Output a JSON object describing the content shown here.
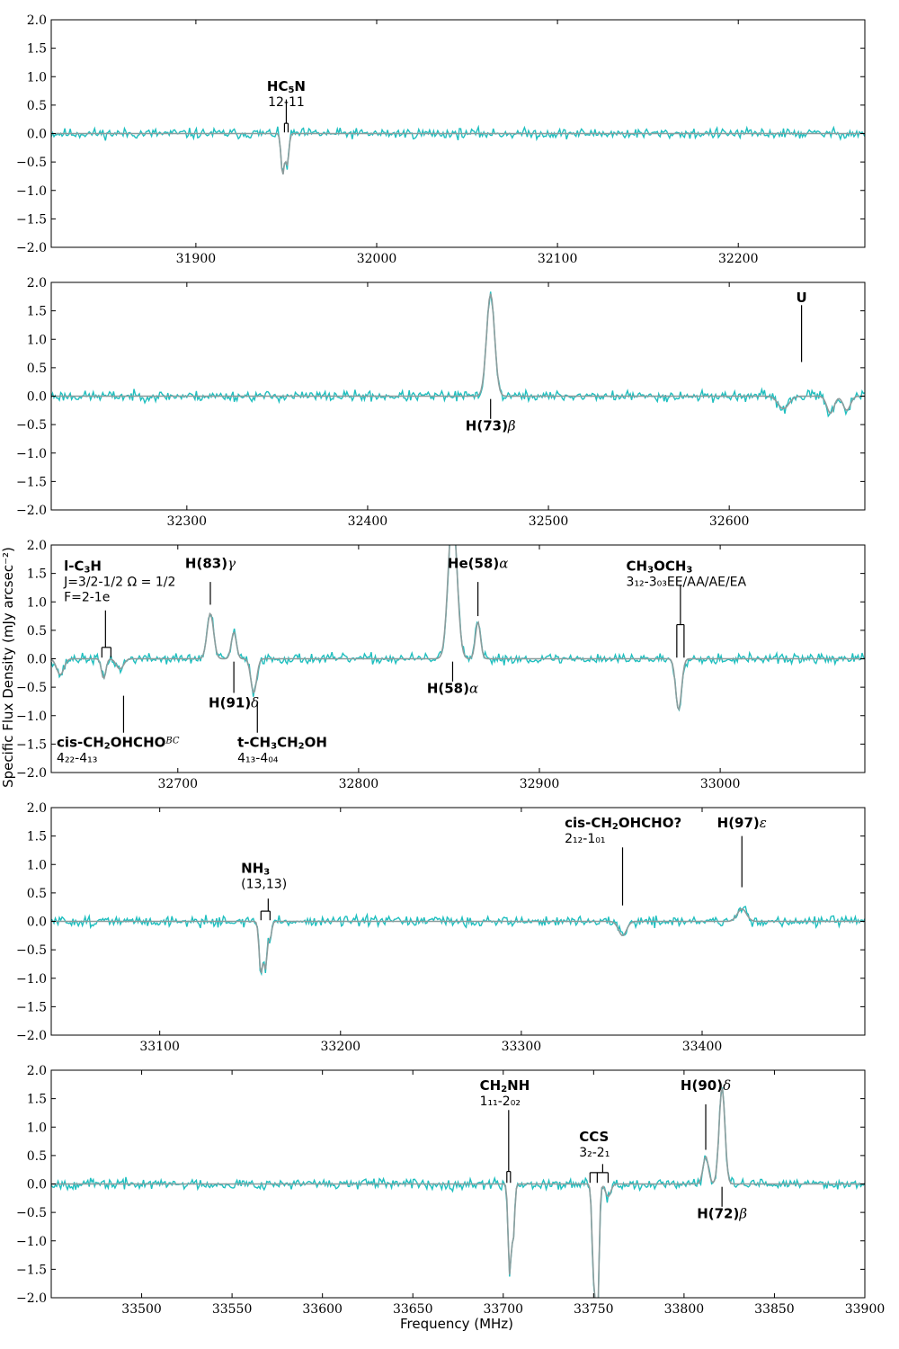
{
  "figure": {
    "ylabel": "Specific Flux Density (mJy arcsec⁻²)",
    "xlabel": "Frequency (MHz)"
  },
  "colors": {
    "observed": "#1fbfbf",
    "model": "#8c9c9c",
    "axes": "#000000"
  },
  "chart_data": [
    {
      "type": "line",
      "xlim": [
        31820,
        32270
      ],
      "ylim": [
        -2.0,
        2.0
      ],
      "xticks": [
        31900,
        32000,
        32100,
        32200
      ],
      "yticks": [
        -2.0,
        -1.5,
        -1.0,
        -0.5,
        0.0,
        0.5,
        1.0,
        1.5,
        2.0
      ],
      "noise_seed": 11,
      "lines": [
        {
          "center": 31948,
          "amp": -0.72,
          "width": 0.9
        },
        {
          "center": 31950.5,
          "amp": -0.55,
          "width": 0.9
        }
      ],
      "labels": [
        {
          "name": "HC",
          "sub": "5",
          "post": "N",
          "trans": "12-11",
          "trans_sub": [],
          "x": 31950,
          "side": "top",
          "bracket": [
            31949,
            31951
          ],
          "text_y": 0.75,
          "tick_to": 0.18
        }
      ]
    },
    {
      "type": "line",
      "xlim": [
        32225,
        32675
      ],
      "ylim": [
        -2.0,
        2.0
      ],
      "xticks": [
        32300,
        32400,
        32500,
        32600
      ],
      "yticks": [
        -2.0,
        -1.5,
        -1.0,
        -0.5,
        0.0,
        0.5,
        1.0,
        1.5,
        2.0
      ],
      "noise_seed": 23,
      "lines": [
        {
          "center": 32468,
          "amp": 1.8,
          "width": 2.2
        },
        {
          "center": 32630,
          "amp": -0.22,
          "width": 3
        },
        {
          "center": 32656,
          "amp": -0.3,
          "width": 2
        },
        {
          "center": 32665,
          "amp": -0.25,
          "width": 2
        }
      ],
      "labels": [
        {
          "name": "U",
          "trans": "",
          "x": 32640,
          "side": "top",
          "text_y": 1.65,
          "tick_from": 1.6,
          "tick_to": 0.6
        },
        {
          "name": "H(73)",
          "greek": "β",
          "trans": "",
          "x": 32468,
          "side": "bottom",
          "text_y": -0.6,
          "tick_from": -0.05,
          "tick_to": -0.4
        }
      ]
    },
    {
      "type": "line",
      "xlim": [
        32630,
        33080
      ],
      "ylim": [
        -2.0,
        2.0
      ],
      "xticks": [
        32700,
        32800,
        32900,
        33000
      ],
      "yticks": [
        -2.0,
        -1.5,
        -1.0,
        -0.5,
        0.0,
        0.5,
        1.0,
        1.5,
        2.0
      ],
      "noise_seed": 37,
      "lines": [
        {
          "center": 32635,
          "amp": -0.28,
          "width": 2
        },
        {
          "center": 32659,
          "amp": -0.35,
          "width": 1.2
        },
        {
          "center": 32668,
          "amp": -0.18,
          "width": 2
        },
        {
          "center": 32718,
          "amp": 0.8,
          "width": 1.8
        },
        {
          "center": 32731,
          "amp": 0.47,
          "width": 1.4
        },
        {
          "center": 32742,
          "amp": -0.6,
          "width": 1.6
        },
        {
          "center": 32852,
          "amp": 2.6,
          "width": 2.4
        },
        {
          "center": 32866,
          "amp": 0.65,
          "width": 1.4
        },
        {
          "center": 32977,
          "amp": -0.9,
          "width": 1.6
        }
      ],
      "labels": [
        {
          "name": "l-C",
          "sub": "3",
          "post": "H",
          "trans": "J=3/2-1/2 Ω = 1/2",
          "trans2": "F=2-1e",
          "trans_sub": [],
          "x": 32660,
          "side": "top",
          "bracket": [
            32658,
            32663
          ],
          "text_y": 1.55,
          "tick_from": 0.85,
          "tick_to": 0.2,
          "text_x": 32637
        },
        {
          "name": "H(83)",
          "greek": "γ",
          "trans": "",
          "x": 32718,
          "side": "top",
          "text_y": 1.6,
          "tick_from": 1.35,
          "tick_to": 0.95
        },
        {
          "name": "He(58)",
          "greek": "α",
          "trans": "",
          "x": 32866,
          "side": "top",
          "text_y": 1.6,
          "tick_from": 1.35,
          "tick_to": 0.75
        },
        {
          "name": "CH",
          "sub": "3",
          "post": "OCH",
          "sub2": "3",
          "trans": "3₁₂-3₀₃EE/AA/AE/EA",
          "trans_sub": [],
          "x": 32978,
          "side": "top",
          "bracket": [
            32976,
            32980
          ],
          "text_y": 1.55,
          "tick_from": 1.3,
          "tick_to": 0.6,
          "text_x": 32948
        },
        {
          "name": "H(91)",
          "greek": "δ",
          "trans": "",
          "x": 32731,
          "side": "bottom",
          "text_y": -0.85,
          "tick_from": -0.05,
          "tick_to": -0.6
        },
        {
          "name": "H(58)",
          "greek": "α",
          "trans": "",
          "x": 32852,
          "side": "bottom",
          "text_y": -0.6,
          "tick_from": -0.05,
          "tick_to": -0.4
        },
        {
          "name": "cis-CH",
          "sub": "2",
          "post": "OHCHO",
          "sup": "BC",
          "trans": "4₂₂-4₁₃",
          "trans_sub": [],
          "x": 32670,
          "side": "bottom",
          "text_y": -1.55,
          "tick_from": -0.65,
          "tick_to": -1.3,
          "text_x": 32633
        },
        {
          "name": "t-CH",
          "sub": "3",
          "post": "CH",
          "sub2": "2",
          "post2": "OH",
          "trans": "4₁₃-4₀₄",
          "trans_sub": [],
          "x": 32744,
          "side": "bottom",
          "text_y": -1.55,
          "tick_from": -0.75,
          "tick_to": -1.3,
          "text_x": 32733
        }
      ]
    },
    {
      "type": "line",
      "xlim": [
        33040,
        33490
      ],
      "ylim": [
        -2.0,
        2.0
      ],
      "xticks": [
        33100,
        33200,
        33300,
        33400
      ],
      "yticks": [
        -2.0,
        -1.5,
        -1.0,
        -0.5,
        0.0,
        0.5,
        1.0,
        1.5,
        2.0
      ],
      "noise_seed": 51,
      "lines": [
        {
          "center": 33156,
          "amp": -0.9,
          "width": 1.0
        },
        {
          "center": 33158.5,
          "amp": -0.8,
          "width": 0.9
        },
        {
          "center": 33161,
          "amp": -0.3,
          "width": 0.9
        },
        {
          "center": 33356,
          "amp": -0.25,
          "width": 2.2
        },
        {
          "center": 33422,
          "amp": 0.22,
          "width": 2.5
        }
      ],
      "labels": [
        {
          "name": "NH",
          "sub": "3",
          "trans": "(13,13)",
          "trans_sub": [],
          "x": 33160,
          "side": "top",
          "bracket": [
            33156,
            33161
          ],
          "text_y": 0.85,
          "tick_from": 0.4,
          "tick_to": 0.18,
          "text_x": 33145
        },
        {
          "name": "cis-CH",
          "sub": "2",
          "post": "OHCHO?",
          "trans": "2₁₂-1₀₁",
          "trans_sub": [],
          "x": 33356,
          "side": "top",
          "bracket": [],
          "text_y": 1.65,
          "tick_from": 1.3,
          "tick_to": 0.28,
          "text_x": 33324
        },
        {
          "name": "H(97)",
          "greek": "ε",
          "trans": "",
          "x": 33422,
          "side": "top",
          "text_y": 1.65,
          "tick_from": 1.5,
          "tick_to": 0.6
        }
      ]
    },
    {
      "type": "line",
      "xlim": [
        33450,
        33900
      ],
      "ylim": [
        -2.0,
        2.0
      ],
      "xticks": [
        33500,
        33550,
        33600,
        33650,
        33700,
        33750,
        33800,
        33850,
        33900
      ],
      "yticks": [
        -2.0,
        -1.5,
        -1.0,
        -0.5,
        0.0,
        0.5,
        1.0,
        1.5,
        2.0
      ],
      "noise_seed": 67,
      "lines": [
        {
          "center": 33703.5,
          "amp": -1.55,
          "width": 0.8
        },
        {
          "center": 33705.5,
          "amp": -0.95,
          "width": 0.8
        },
        {
          "center": 33750,
          "amp": -1.5,
          "width": 0.9
        },
        {
          "center": 33752,
          "amp": -2.5,
          "width": 0.9
        },
        {
          "center": 33758,
          "amp": -0.22,
          "width": 1.5
        },
        {
          "center": 33812,
          "amp": 0.48,
          "width": 1.5
        },
        {
          "center": 33821,
          "amp": 1.7,
          "width": 1.6
        }
      ],
      "labels": [
        {
          "name": "CH",
          "sub": "2",
          "post": "NH",
          "trans": "1₁₁-2₀₂",
          "trans_sub": [],
          "x": 33703,
          "side": "top",
          "bracket": [
            33702,
            33704
          ],
          "text_y": 1.65,
          "tick_from": 1.3,
          "tick_to": 0.22,
          "text_x": 33687
        },
        {
          "name": "CCS",
          "trans": "3₂-2₁",
          "trans_sub": [],
          "x": 33755,
          "side": "top",
          "bracket": [
            33748,
            33752,
            33758
          ],
          "text_y": 0.75,
          "tick_from": 0.35,
          "tick_to": 0.2,
          "text_x": 33742
        },
        {
          "name": "H(90)",
          "greek": "δ",
          "trans": "",
          "x": 33812,
          "side": "top",
          "text_y": 1.65,
          "tick_from": 1.4,
          "tick_to": 0.6
        },
        {
          "name": "H(72)",
          "greek": "β",
          "trans": "",
          "x": 33821,
          "side": "bottom",
          "text_y": -0.6,
          "tick_from": -0.05,
          "tick_to": -0.4
        }
      ]
    }
  ]
}
